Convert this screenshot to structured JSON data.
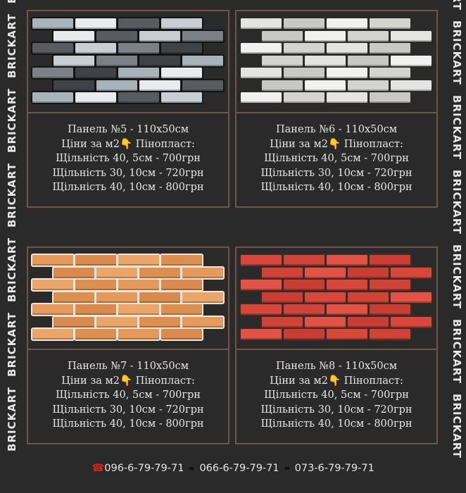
{
  "brand": "BRICKART",
  "panels": [
    {
      "title": "Панель №5 - 110х50см",
      "prices_label": "Ціни за м2",
      "hand": "👇",
      "material": "Пінопласт:",
      "lines": [
        "Щільність 40, 5см - 700грн",
        "Щільність 30, 10см - 720грн",
        "Щільність 40, 10см - 800грн"
      ],
      "palette": [
        "#a9b3ba",
        "#e9ecee",
        "#585c60",
        "#c7cfd4",
        "#7b8186",
        "#3f4246"
      ],
      "grout": "#141414"
    },
    {
      "title": "Панель №6 - 110х50см",
      "prices_label": "Ціни за м2",
      "hand": "👇",
      "material": "Пінопласт:",
      "lines": [
        "Щільність 40, 5см - 700грн",
        "Щільність 30, 10см - 720грн",
        "Щільність 40, 10см - 800грн"
      ],
      "palette": [
        "#e4e4e2",
        "#d3d3d0",
        "#f1f1ef",
        "#c8c8c4"
      ],
      "grout": "#2a2a2a"
    },
    {
      "title": "Панель №7 - 110х50см",
      "prices_label": "Ціни за м2",
      "hand": "👇",
      "material": "Пінопласт:",
      "lines": [
        "Щільність 40, 5см - 700грн",
        "Щільність 30, 10см - 720грн",
        "Щільність 40, 10см - 800грн"
      ],
      "palette": [
        "#e59a5c",
        "#dd8f50",
        "#eaa568",
        "#d98a4c"
      ],
      "grout": "#f1e6da"
    },
    {
      "title": "Панель №8 - 110х50см",
      "prices_label": "Ціни за м2",
      "hand": "👇",
      "material": "Пінопласт:",
      "lines": [
        "Щільність 40, 5см - 700грн",
        "Щільність 30, 10см - 720грн",
        "Щільність 40, 10см - 800грн"
      ],
      "palette": [
        "#d9473b",
        "#c93d33",
        "#e25346",
        "#cf4437"
      ],
      "grout": "#3a2a28"
    }
  ],
  "footer": {
    "phone_icon": "☎",
    "phones": [
      "096-6-79-79-71",
      "066-6-79-79-71",
      "073-6-79-79-71"
    ]
  }
}
